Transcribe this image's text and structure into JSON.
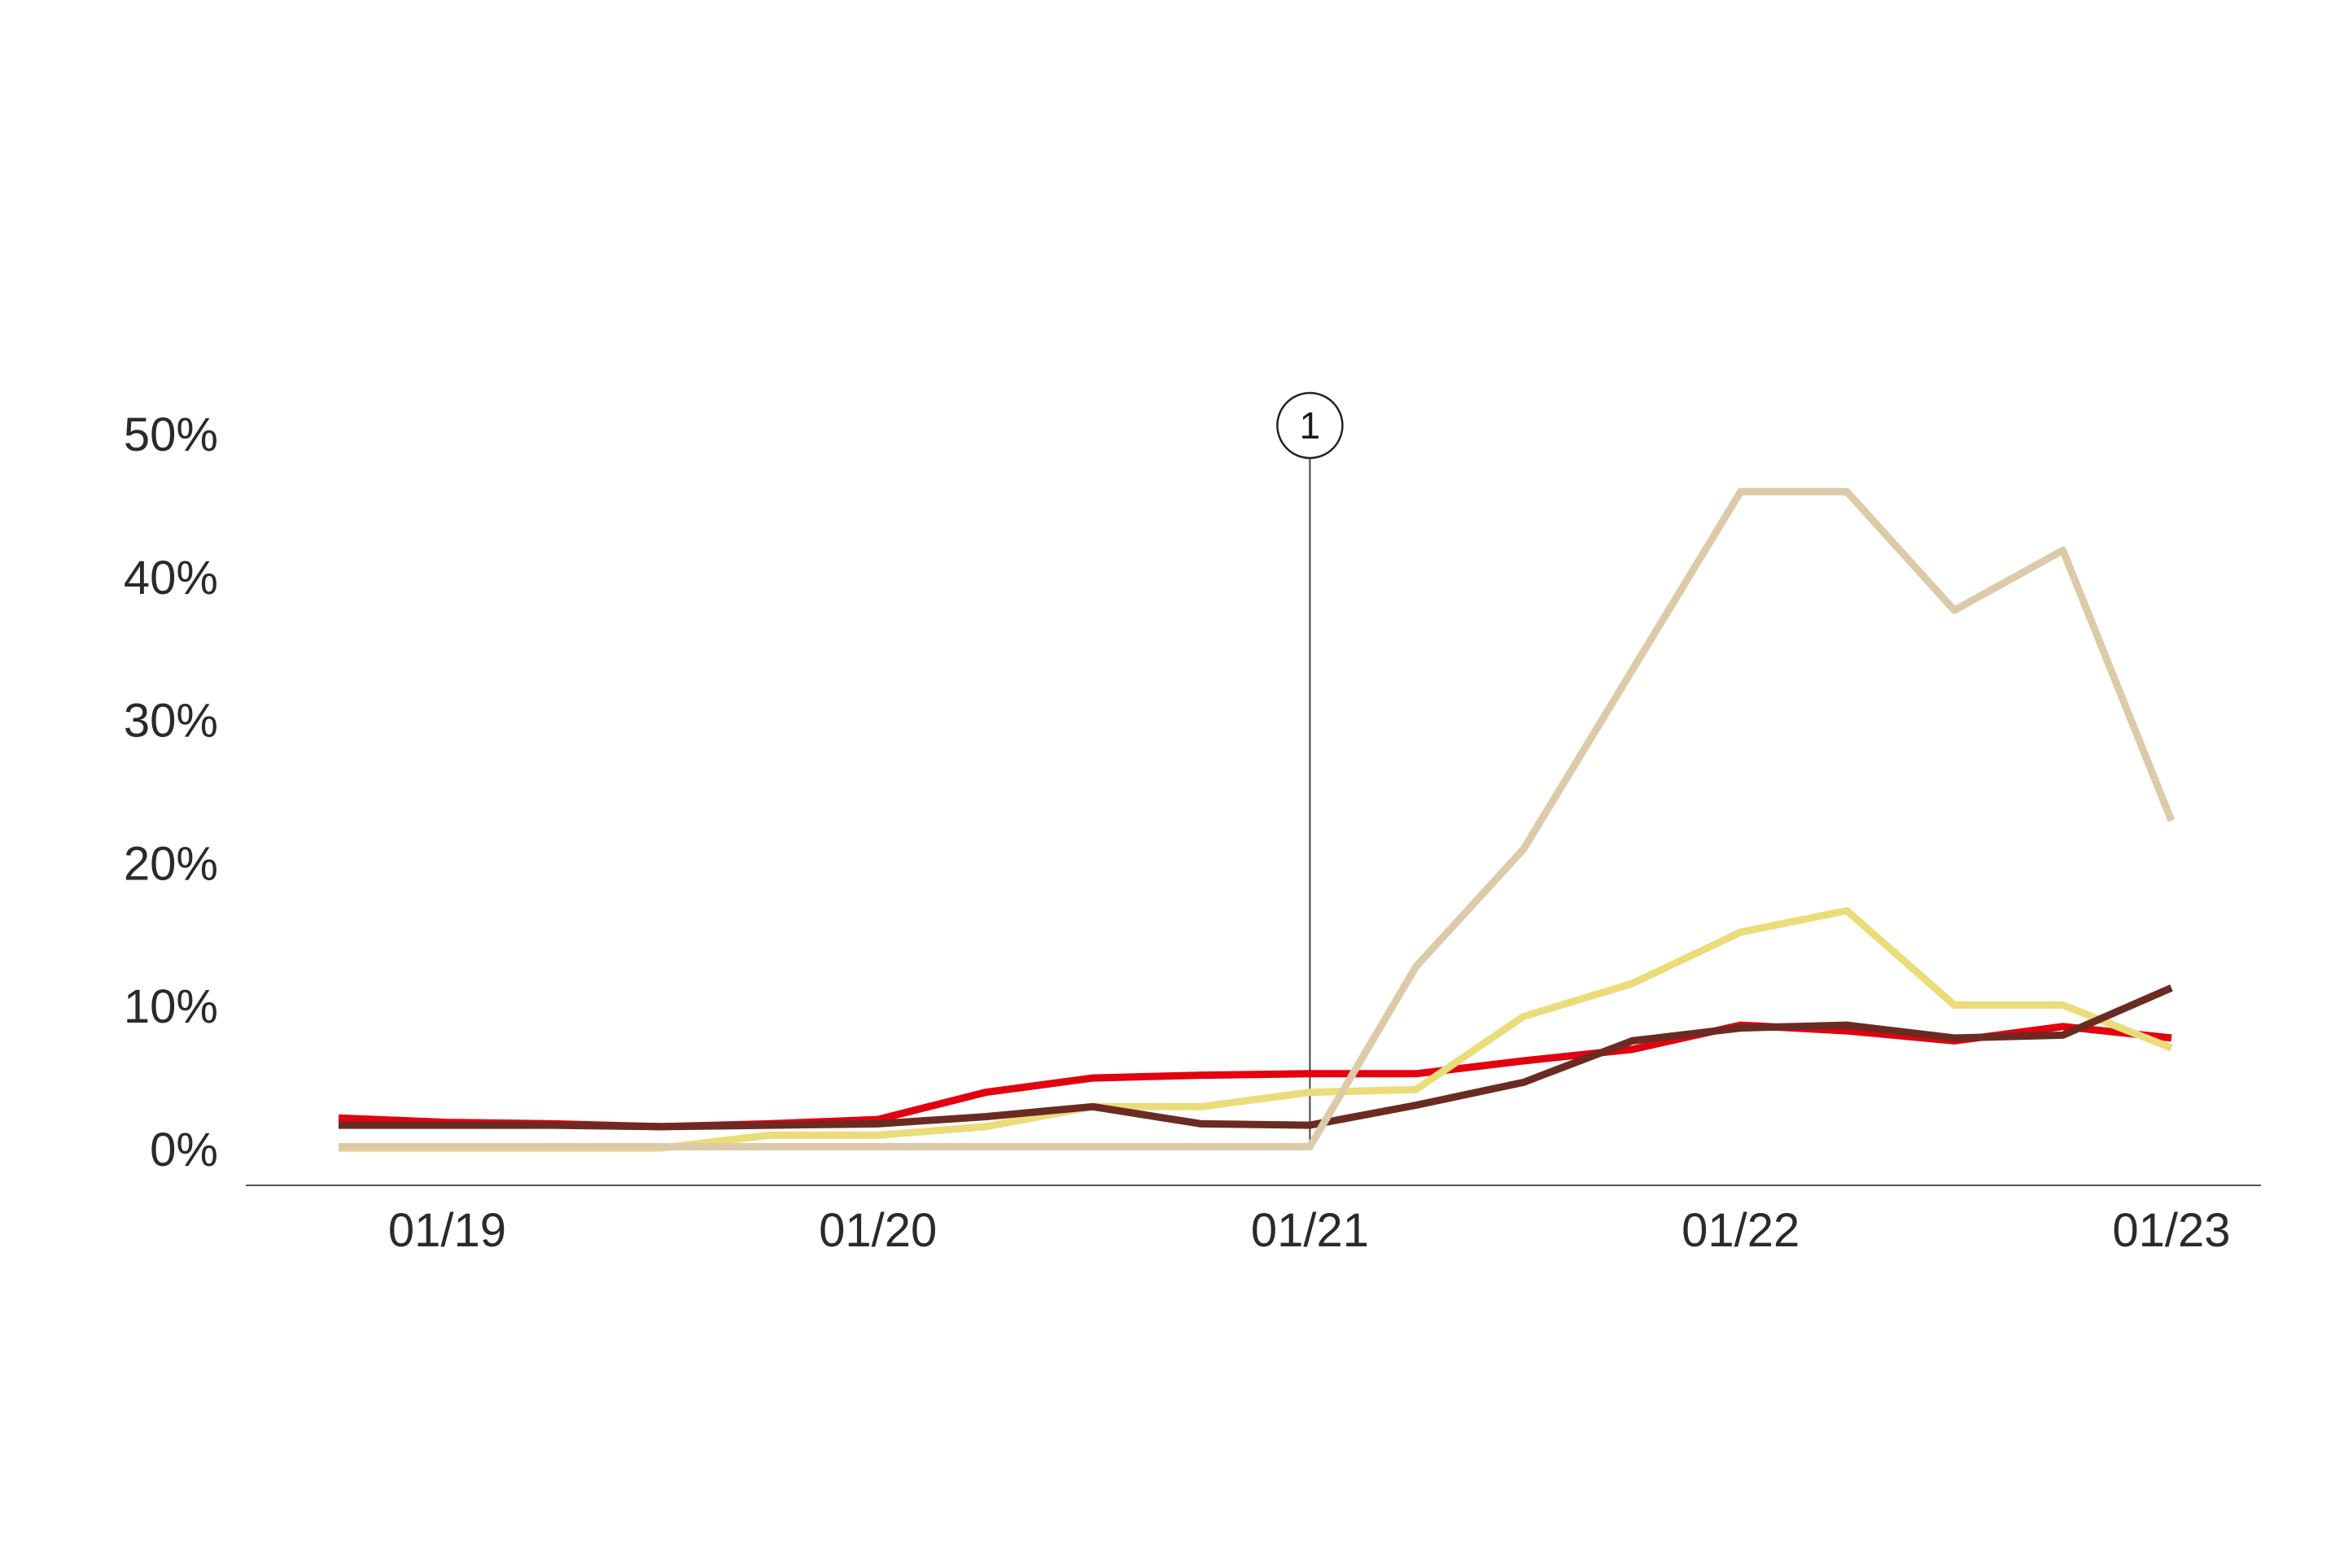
{
  "chart_data": {
    "type": "line",
    "x_axis_type": "date",
    "x_range": [
      "2018-10-01",
      "2023-01-01"
    ],
    "x_ticks": [
      {
        "x": "2019-01-01",
        "label": "01/19"
      },
      {
        "x": "2020-01-01",
        "label": "01/20"
      },
      {
        "x": "2021-01-01",
        "label": "01/21"
      },
      {
        "x": "2022-01-01",
        "label": "01/22"
      },
      {
        "x": "2023-01-01",
        "label": "01/23"
      }
    ],
    "y_unit": "%",
    "ylim": [
      0,
      50
    ],
    "y_ticks": [
      {
        "y": 0,
        "label": "0%"
      },
      {
        "y": 10,
        "label": "10%"
      },
      {
        "y": 20,
        "label": "20%"
      },
      {
        "y": 30,
        "label": "30%"
      },
      {
        "y": 40,
        "label": "40%"
      },
      {
        "y": 50,
        "label": "50%"
      }
    ],
    "grid": false,
    "legend": "none",
    "annotations": [
      {
        "x": "2021-01-01",
        "label": "1",
        "style": "vertical-line-with-circle-marker"
      }
    ],
    "series": [
      {
        "color": "#e3000f",
        "points": [
          {
            "x": "2018-10-01",
            "y": 2.2
          },
          {
            "x": "2019-01-01",
            "y": 1.9
          },
          {
            "x": "2019-04-01",
            "y": 1.8
          },
          {
            "x": "2019-07-01",
            "y": 1.6
          },
          {
            "x": "2019-10-01",
            "y": 1.8
          },
          {
            "x": "2020-01-01",
            "y": 2.1
          },
          {
            "x": "2020-04-01",
            "y": 4.0
          },
          {
            "x": "2020-07-01",
            "y": 5.0
          },
          {
            "x": "2020-10-01",
            "y": 5.2
          },
          {
            "x": "2021-01-01",
            "y": 5.3
          },
          {
            "x": "2021-04-01",
            "y": 5.3
          },
          {
            "x": "2021-07-01",
            "y": 6.2
          },
          {
            "x": "2021-10-01",
            "y": 7.0
          },
          {
            "x": "2022-01-01",
            "y": 8.7
          },
          {
            "x": "2022-04-01",
            "y": 8.3
          },
          {
            "x": "2022-07-01",
            "y": 7.6
          },
          {
            "x": "2022-10-01",
            "y": 8.6
          },
          {
            "x": "2023-01-01",
            "y": 7.8
          }
        ]
      },
      {
        "color": "#ebdc7a",
        "points": [
          {
            "x": "2018-10-01",
            "y": 0.1
          },
          {
            "x": "2019-01-01",
            "y": 0.1
          },
          {
            "x": "2019-04-01",
            "y": 0.1
          },
          {
            "x": "2019-07-01",
            "y": 0.1
          },
          {
            "x": "2019-10-01",
            "y": 1.0
          },
          {
            "x": "2020-01-01",
            "y": 1.0
          },
          {
            "x": "2020-04-01",
            "y": 1.6
          },
          {
            "x": "2020-07-01",
            "y": 3.0
          },
          {
            "x": "2020-10-01",
            "y": 3.0
          },
          {
            "x": "2021-01-01",
            "y": 4.0
          },
          {
            "x": "2021-04-01",
            "y": 4.2
          },
          {
            "x": "2021-07-01",
            "y": 9.3
          },
          {
            "x": "2021-10-01",
            "y": 11.6
          },
          {
            "x": "2022-01-01",
            "y": 15.2
          },
          {
            "x": "2022-04-01",
            "y": 16.7
          },
          {
            "x": "2022-07-01",
            "y": 10.1
          },
          {
            "x": "2022-10-01",
            "y": 10.1
          },
          {
            "x": "2023-01-01",
            "y": 7.1
          }
        ]
      },
      {
        "color": "#6b2b23",
        "points": [
          {
            "x": "2018-10-01",
            "y": 1.7
          },
          {
            "x": "2019-01-01",
            "y": 1.7
          },
          {
            "x": "2019-04-01",
            "y": 1.7
          },
          {
            "x": "2019-07-01",
            "y": 1.6
          },
          {
            "x": "2019-10-01",
            "y": 1.7
          },
          {
            "x": "2020-01-01",
            "y": 1.8
          },
          {
            "x": "2020-04-01",
            "y": 2.3
          },
          {
            "x": "2020-07-01",
            "y": 3.0
          },
          {
            "x": "2020-10-01",
            "y": 1.8
          },
          {
            "x": "2021-01-01",
            "y": 1.7
          },
          {
            "x": "2021-04-01",
            "y": 3.1
          },
          {
            "x": "2021-07-01",
            "y": 4.7
          },
          {
            "x": "2021-10-01",
            "y": 7.6
          },
          {
            "x": "2022-01-01",
            "y": 8.5
          },
          {
            "x": "2022-04-01",
            "y": 8.7
          },
          {
            "x": "2022-07-01",
            "y": 7.8
          },
          {
            "x": "2022-10-01",
            "y": 8.0
          },
          {
            "x": "2023-01-01",
            "y": 11.3
          }
        ]
      },
      {
        "color": "#dccaa8",
        "points": [
          {
            "x": "2018-10-01",
            "y": 0.2
          },
          {
            "x": "2019-01-01",
            "y": 0.2
          },
          {
            "x": "2019-04-01",
            "y": 0.2
          },
          {
            "x": "2019-07-01",
            "y": 0.2
          },
          {
            "x": "2019-10-01",
            "y": 0.2
          },
          {
            "x": "2020-01-01",
            "y": 0.2
          },
          {
            "x": "2020-04-01",
            "y": 0.2
          },
          {
            "x": "2020-07-01",
            "y": 0.2
          },
          {
            "x": "2020-10-01",
            "y": 0.2
          },
          {
            "x": "2021-01-01",
            "y": 0.2
          },
          {
            "x": "2021-04-01",
            "y": 12.8
          },
          {
            "x": "2021-07-01",
            "y": 21.0
          },
          {
            "x": "2021-10-01",
            "y": 33.5
          },
          {
            "x": "2022-01-01",
            "y": 46.0
          },
          {
            "x": "2022-04-01",
            "y": 46.0
          },
          {
            "x": "2022-07-01",
            "y": 37.7
          },
          {
            "x": "2022-10-01",
            "y": 41.9
          },
          {
            "x": "2023-01-01",
            "y": 23.0
          }
        ]
      }
    ]
  }
}
